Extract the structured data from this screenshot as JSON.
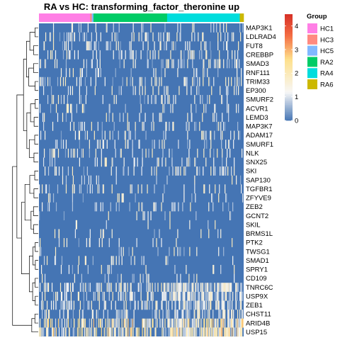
{
  "chart_data": {
    "type": "heatmap",
    "title": "RA vs HC: transforming_factor_theronine up",
    "rows": [
      "MAP3K1",
      "LDLRAD4",
      "FUT8",
      "CREBBP",
      "SMAD3",
      "RNF111",
      "TRIM33",
      "EP300",
      "SMURF2",
      "ACVR1",
      "LEMD3",
      "MAP3K7",
      "ADAM17",
      "SMURF1",
      "NLK",
      "SNX25",
      "SKI",
      "SAP130",
      "TGFBR1",
      "ZFYVE9",
      "ZEB2",
      "GCNT2",
      "SKIL",
      "BRMS1L",
      "PTK2",
      "TWSG1",
      "SMAD1",
      "SPRY1",
      "CD109",
      "TNRC6C",
      "USP9X",
      "ZEB1",
      "CHST11",
      "ARID4B",
      "USP15"
    ],
    "column_groups": [
      {
        "name": "HC1",
        "fraction": 0.25
      },
      {
        "name": "HC3",
        "fraction": 0.008
      },
      {
        "name": "HC5",
        "fraction": 0.008
      },
      {
        "name": "RA2",
        "fraction": 0.36
      },
      {
        "name": "RA4",
        "fraction": 0.355
      },
      {
        "name": "RA6",
        "fraction": 0.019
      }
    ],
    "annotation": {
      "title": "Group",
      "levels": [
        {
          "name": "HC1",
          "color": "#FF7FE5"
        },
        {
          "name": "HC3",
          "color": "#FF8A80"
        },
        {
          "name": "HC5",
          "color": "#80B8FF"
        },
        {
          "name": "RA2",
          "color": "#00CC66"
        },
        {
          "name": "RA4",
          "color": "#00DDDD"
        },
        {
          "name": "RA6",
          "color": "#CCB800"
        }
      ]
    },
    "color_scale": {
      "min": 0,
      "max": 4.5,
      "ticks": [
        "0",
        "1",
        "2",
        "3",
        "4"
      ],
      "stops": [
        {
          "value": 0,
          "color": "#4575B4"
        },
        {
          "value": 1.2,
          "color": "#F7F7F7"
        },
        {
          "value": 2.6,
          "color": "#FEE08B"
        },
        {
          "value": 3.6,
          "color": "#F46D43"
        },
        {
          "value": 4.5,
          "color": "#D73027"
        }
      ]
    },
    "row_density": [
      0.12,
      0.2,
      0.16,
      0.15,
      0.16,
      0.1,
      0.14,
      0.13,
      0.12,
      0.1,
      0.1,
      0.12,
      0.1,
      0.11,
      0.1,
      0.1,
      0.12,
      0.08,
      0.09,
      0.08,
      0.08,
      0.05,
      0.05,
      0.06,
      0.05,
      0.05,
      0.05,
      0.04,
      0.05,
      0.35,
      0.3,
      0.28,
      0.2,
      0.4,
      0.45
    ],
    "legend_position": "right"
  }
}
